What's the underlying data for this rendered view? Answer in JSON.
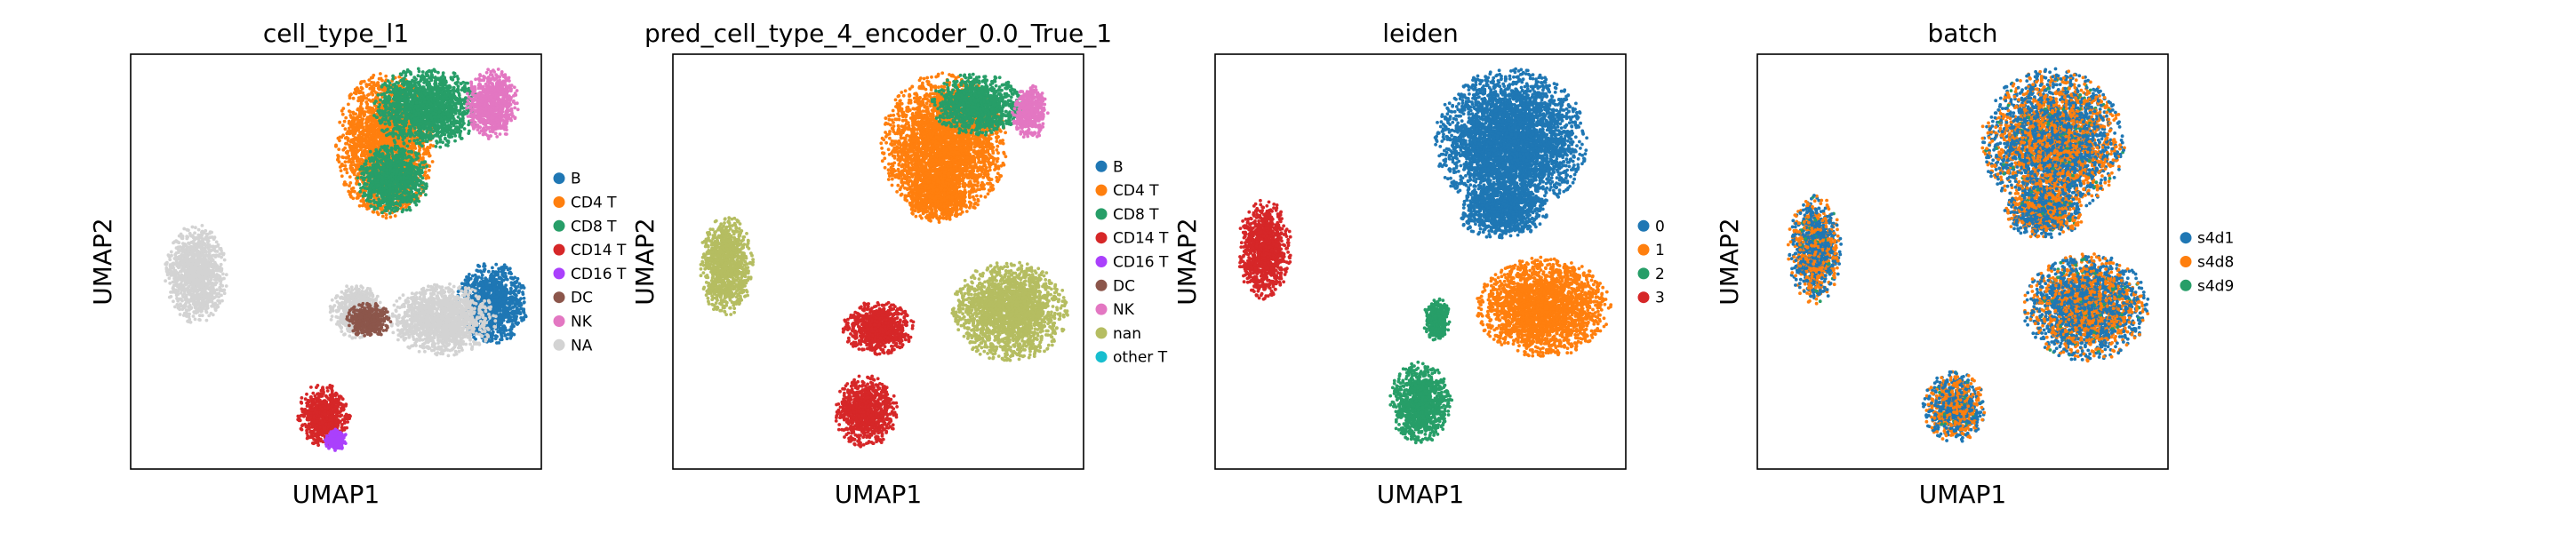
{
  "chart_data": [
    {
      "type": "scatter",
      "title": "cell_type_l1",
      "xlabel": "UMAP1",
      "ylabel": "UMAP2",
      "grid": false,
      "legend": "right",
      "categories": [
        "B",
        "CD4 T",
        "CD8 T",
        "CD14 T",
        "CD16 T",
        "DC",
        "NK",
        "NA"
      ],
      "colors": [
        "#1f77b4",
        "#ff7f0e",
        "#279e68",
        "#d62728",
        "#aa40fc",
        "#8c564b",
        "#e377c2",
        "#d3d3d3"
      ],
      "regions": [
        {
          "category": "NA",
          "cx": 0.16,
          "cy": 0.53,
          "rx": 0.07,
          "ry": 0.11
        },
        {
          "category": "CD4 T",
          "cx": 0.62,
          "cy": 0.22,
          "rx": 0.11,
          "ry": 0.16
        },
        {
          "category": "CD8 T",
          "cx": 0.72,
          "cy": 0.13,
          "rx": 0.12,
          "ry": 0.09
        },
        {
          "category": "NK",
          "cx": 0.88,
          "cy": 0.12,
          "rx": 0.06,
          "ry": 0.08
        },
        {
          "category": "CD8 T",
          "cx": 0.64,
          "cy": 0.3,
          "rx": 0.08,
          "ry": 0.08
        },
        {
          "category": "B",
          "cx": 0.88,
          "cy": 0.6,
          "rx": 0.08,
          "ry": 0.09
        },
        {
          "category": "NA",
          "cx": 0.76,
          "cy": 0.64,
          "rx": 0.12,
          "ry": 0.08
        },
        {
          "category": "NA",
          "cx": 0.55,
          "cy": 0.62,
          "rx": 0.06,
          "ry": 0.06
        },
        {
          "category": "DC",
          "cx": 0.58,
          "cy": 0.64,
          "rx": 0.05,
          "ry": 0.04
        },
        {
          "category": "CD14 T",
          "cx": 0.47,
          "cy": 0.87,
          "rx": 0.06,
          "ry": 0.07
        },
        {
          "category": "CD16 T",
          "cx": 0.5,
          "cy": 0.93,
          "rx": 0.025,
          "ry": 0.025
        }
      ]
    },
    {
      "type": "scatter",
      "title": "pred_cell_type_4_encoder_0.0_True_1",
      "xlabel": "UMAP1",
      "ylabel": "UMAP2",
      "grid": false,
      "legend": "right",
      "categories": [
        "B",
        "CD4 T",
        "CD8 T",
        "CD14 T",
        "CD16 T",
        "DC",
        "NK",
        "nan",
        "other T"
      ],
      "colors": [
        "#1f77b4",
        "#ff7f0e",
        "#279e68",
        "#d62728",
        "#aa40fc",
        "#8c564b",
        "#e377c2",
        "#b5bd61",
        "#17becf"
      ],
      "regions": [
        {
          "category": "nan",
          "cx": 0.13,
          "cy": 0.51,
          "rx": 0.06,
          "ry": 0.11
        },
        {
          "category": "CD4 T",
          "cx": 0.66,
          "cy": 0.22,
          "rx": 0.14,
          "ry": 0.16
        },
        {
          "category": "CD8 T",
          "cx": 0.74,
          "cy": 0.12,
          "rx": 0.1,
          "ry": 0.07
        },
        {
          "category": "NK",
          "cx": 0.87,
          "cy": 0.14,
          "rx": 0.04,
          "ry": 0.06
        },
        {
          "category": "CD4 T",
          "cx": 0.64,
          "cy": 0.34,
          "rx": 0.07,
          "ry": 0.06
        },
        {
          "category": "nan",
          "cx": 0.82,
          "cy": 0.62,
          "rx": 0.13,
          "ry": 0.11
        },
        {
          "category": "CD14 T",
          "cx": 0.5,
          "cy": 0.66,
          "rx": 0.08,
          "ry": 0.06
        },
        {
          "category": "CD14 T",
          "cx": 0.47,
          "cy": 0.86,
          "rx": 0.07,
          "ry": 0.08
        }
      ]
    },
    {
      "type": "scatter",
      "title": "leiden",
      "xlabel": "UMAP1",
      "ylabel": "UMAP2",
      "grid": false,
      "legend": "right",
      "categories": [
        "0",
        "1",
        "2",
        "3"
      ],
      "colors": [
        "#1f77b4",
        "#ff7f0e",
        "#279e68",
        "#d62728"
      ],
      "regions": [
        {
          "category": "3",
          "cx": 0.12,
          "cy": 0.47,
          "rx": 0.06,
          "ry": 0.11
        },
        {
          "category": "0",
          "cx": 0.72,
          "cy": 0.21,
          "rx": 0.17,
          "ry": 0.16
        },
        {
          "category": "0",
          "cx": 0.7,
          "cy": 0.38,
          "rx": 0.1,
          "ry": 0.06
        },
        {
          "category": "1",
          "cx": 0.8,
          "cy": 0.61,
          "rx": 0.15,
          "ry": 0.11
        },
        {
          "category": "2",
          "cx": 0.5,
          "cy": 0.84,
          "rx": 0.07,
          "ry": 0.09
        },
        {
          "category": "2",
          "cx": 0.54,
          "cy": 0.64,
          "rx": 0.03,
          "ry": 0.05
        }
      ]
    },
    {
      "type": "scatter",
      "title": "batch",
      "xlabel": "UMAP1",
      "ylabel": "UMAP2",
      "grid": false,
      "legend": "right",
      "categories": [
        "s4d1",
        "s4d8",
        "s4d9"
      ],
      "colors": [
        "#1f77b4",
        "#ff7f0e",
        "#279e68"
      ],
      "regions": [
        {
          "category": "mixed",
          "cx": 0.14,
          "cy": 0.47,
          "rx": 0.06,
          "ry": 0.12
        },
        {
          "category": "mixed",
          "cx": 0.72,
          "cy": 0.21,
          "rx": 0.16,
          "ry": 0.16
        },
        {
          "category": "mixed",
          "cx": 0.7,
          "cy": 0.38,
          "rx": 0.09,
          "ry": 0.06
        },
        {
          "category": "mixed",
          "cx": 0.8,
          "cy": 0.61,
          "rx": 0.14,
          "ry": 0.12
        },
        {
          "category": "mixed",
          "cx": 0.48,
          "cy": 0.85,
          "rx": 0.07,
          "ry": 0.08
        }
      ]
    }
  ]
}
